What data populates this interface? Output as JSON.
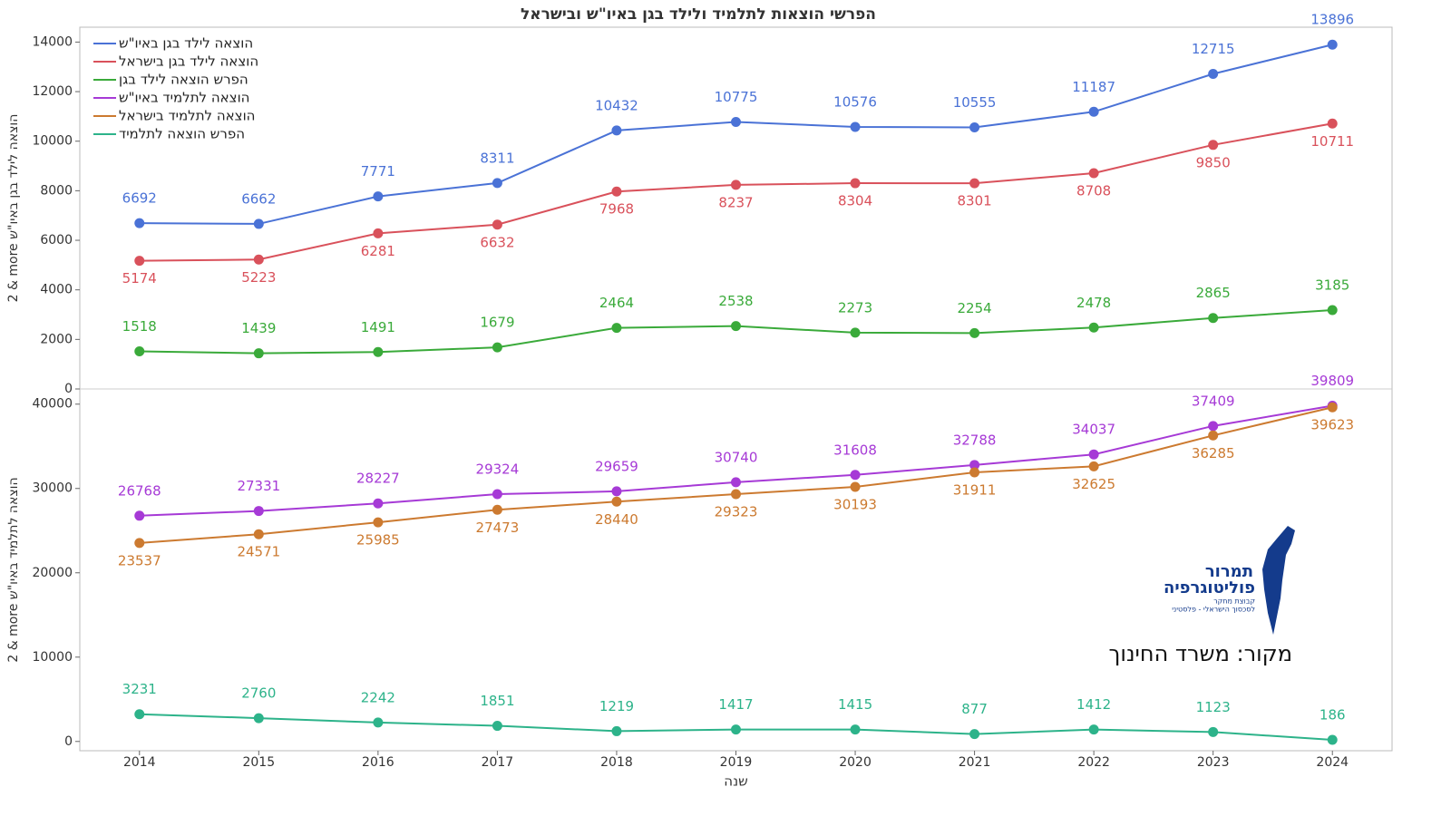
{
  "chart_data": [
    {
      "type": "line",
      "title": "הפרשי הוצאות לתלמיד ולילד בגן באיו\"ש ובישראל",
      "ylabel": "2 & more הוצאה לילד בגן באיו\"ש",
      "x": [
        2014,
        2015,
        2016,
        2017,
        2018,
        2019,
        2020,
        2021,
        2022,
        2023,
        2024
      ],
      "xlim": [
        2013.5,
        2024.5
      ],
      "ylim": [
        0,
        14600
      ],
      "yticks": [
        0,
        2000,
        4000,
        6000,
        8000,
        10000,
        12000,
        14000
      ],
      "legend": "top-left",
      "grid": false,
      "series": [
        {
          "name": "הוצאה לילד בגן באיו\"ש",
          "color": "#4a72d6",
          "labels": "above",
          "values": [
            6692,
            6662,
            7771,
            8311,
            10432,
            10775,
            10576,
            10555,
            11187,
            12715,
            13896
          ]
        },
        {
          "name": "הוצאה לילד בגן בישראל",
          "color": "#d9515b",
          "labels": "below",
          "values": [
            5174,
            5223,
            6281,
            6632,
            7968,
            8237,
            8304,
            8301,
            8708,
            9850,
            10711
          ]
        },
        {
          "name": "הפרש הוצאה לילד בגן",
          "color": "#3aaa3a",
          "labels": "above",
          "values": [
            1518,
            1439,
            1491,
            1679,
            2464,
            2538,
            2273,
            2254,
            2478,
            2865,
            3185
          ]
        }
      ]
    },
    {
      "type": "line",
      "xlabel": "שנה",
      "ylabel": "2 & more הוצאה לתלמיד באיו\"ש",
      "x": [
        2014,
        2015,
        2016,
        2017,
        2018,
        2019,
        2020,
        2021,
        2022,
        2023,
        2024
      ],
      "xlim": [
        2013.5,
        2024.5
      ],
      "xticks": [
        2014,
        2015,
        2016,
        2017,
        2018,
        2019,
        2020,
        2021,
        2022,
        2023,
        2024
      ],
      "ylim": [
        -1100,
        41800
      ],
      "yticks": [
        0,
        10000,
        20000,
        30000,
        40000
      ],
      "legend": "top-left",
      "grid": false,
      "series": [
        {
          "name": "הוצאה לתלמיד באיו\"ש",
          "color": "#a63ad6",
          "labels": "above",
          "values": [
            26768,
            27331,
            28227,
            29324,
            29659,
            30740,
            31608,
            32788,
            34037,
            37409,
            39809
          ]
        },
        {
          "name": "הוצאה לתלמיד בישראל",
          "color": "#cc7a30",
          "labels": "below",
          "values": [
            23537,
            24571,
            25985,
            27473,
            28440,
            29323,
            30193,
            31911,
            32625,
            36285,
            39623
          ]
        },
        {
          "name": "הפרש הוצאה לתלמיד",
          "color": "#2db38a",
          "labels": "above",
          "values": [
            3231,
            2760,
            2242,
            1851,
            1219,
            1417,
            1415,
            877,
            1412,
            1123,
            186
          ]
        }
      ]
    }
  ],
  "source": "מקור: משרד החינוך",
  "logo": {
    "name_line1": "תמרור",
    "name_line2": "פוליטוגרפיה",
    "tagline_line1": "קבוצת מחקר",
    "tagline_line2": "לסכסוך הישראלי - פלסטיני"
  }
}
